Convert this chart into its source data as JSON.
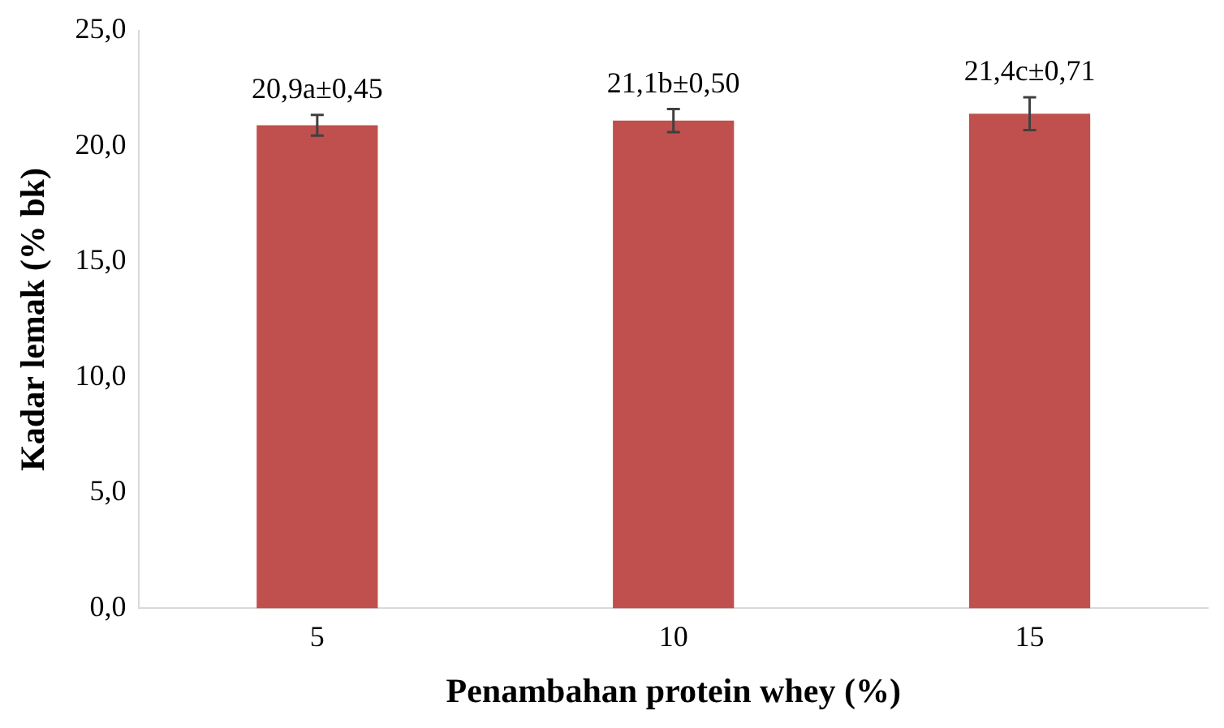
{
  "chart_data": {
    "type": "bar",
    "xlabel": "Penambahan protein whey (%)",
    "ylabel": "Kadar lemak (% bk)",
    "categories": [
      "5",
      "10",
      "15"
    ],
    "values": [
      20.9,
      21.1,
      21.4
    ],
    "errors": [
      0.45,
      0.5,
      0.71
    ],
    "annotations": [
      {
        "text": "20,9a±0,45",
        "x": "5",
        "y": 21.35
      },
      {
        "text": "21,1b±0,50",
        "x": "10",
        "y": 21.6
      },
      {
        "text": "21,4c±0,71",
        "x": "15",
        "y": 22.11
      }
    ],
    "color": "#c0504d",
    "ylim": [
      0,
      25
    ],
    "yticks": [
      {
        "value": 0,
        "label": "0,0"
      },
      {
        "value": 5,
        "label": "5,0"
      },
      {
        "value": 10,
        "label": "10,0"
      },
      {
        "value": 15,
        "label": "15,0"
      },
      {
        "value": 20,
        "label": "20,0"
      },
      {
        "value": 25,
        "label": "25,0"
      }
    ],
    "grid": false,
    "legend": false
  }
}
